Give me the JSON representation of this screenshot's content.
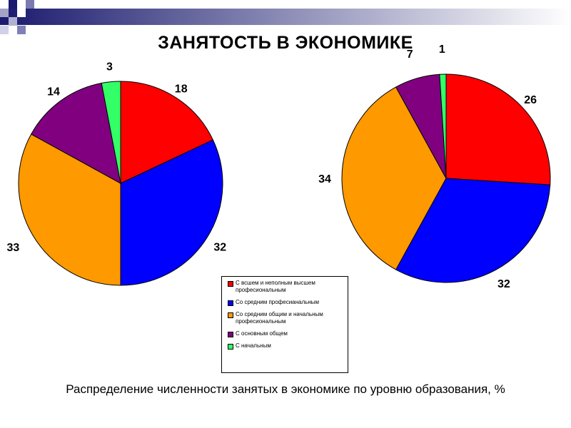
{
  "title": "ЗАНЯТОСТЬ В ЭКОНОМИКЕ",
  "caption": "Распределение численности занятых в экономике по уровню образования, %",
  "colors": {
    "red": "#ff0000",
    "blue": "#0000ff",
    "orange": "#ff9900",
    "purple": "#800080",
    "green": "#33ff66",
    "deco_dark": "#1a1a6e"
  },
  "legend": [
    {
      "label": "С всшем и неполным высшем професиональным",
      "color": "#ff0000"
    },
    {
      "label": "Со средним професианальным",
      "color": "#0000ff"
    },
    {
      "label": "Со средним общим и начальным професиональным",
      "color": "#ff9900"
    },
    {
      "label": "С основным общем",
      "color": "#800080"
    },
    {
      "label": "С начальным",
      "color": "#33ff66"
    }
  ],
  "chart_data": [
    {
      "type": "pie",
      "categories": [
        "С всшем и неполным высшем професиональным",
        "Со средним професианальным",
        "Со средним общим и начальным професиональным",
        "С основным общем",
        "С начальным"
      ],
      "values": [
        18,
        32,
        33,
        14,
        3
      ],
      "labels": [
        "18",
        "32",
        "33",
        "14",
        "3"
      ],
      "colors": [
        "#ff0000",
        "#0000ff",
        "#ff9900",
        "#800080",
        "#33ff66"
      ]
    },
    {
      "type": "pie",
      "categories": [
        "С всшем и неполным высшем професиональным",
        "Со средним професианальным",
        "Со средним общим и начальным професиональным",
        "С основным общем",
        "С начальным"
      ],
      "values": [
        26,
        32,
        34,
        7,
        1
      ],
      "labels": [
        "26",
        "32",
        "34",
        "7",
        "1"
      ],
      "colors": [
        "#ff0000",
        "#0000ff",
        "#ff9900",
        "#800080",
        "#33ff66"
      ]
    }
  ]
}
